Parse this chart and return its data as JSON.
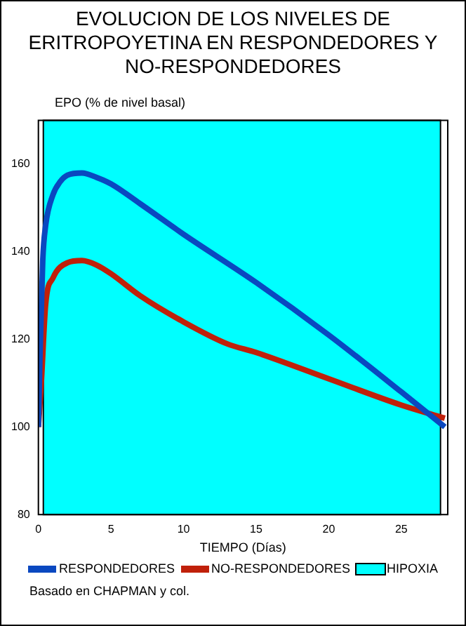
{
  "chart_data": {
    "type": "line",
    "title": "EVOLUCION DE LOS NIVELES DE ERITROPOYETINA EN RESPONDEDORES Y NO-RESPONDEDORES",
    "ylabel": "EPO (% de nivel basal)",
    "xlabel": "TIEMPO (Días)",
    "xlim": [
      0,
      28.2
    ],
    "xticks": [
      0,
      5,
      10,
      15,
      20,
      25
    ],
    "ylim": [
      80,
      170
    ],
    "yticks": [
      80,
      100,
      120,
      140,
      160
    ],
    "legend": "bottom",
    "marker": "none",
    "line_style": "solid",
    "grid": false,
    "series": [
      {
        "name": "RESPONDEDORES",
        "color": "#0a48c0",
        "x": [
          0,
          0.1,
          0.3,
          0.5,
          1,
          1.5,
          2,
          3,
          4,
          5,
          7,
          10,
          15,
          20,
          25,
          28
        ],
        "values": [
          100,
          115,
          138,
          146,
          153,
          156,
          157.5,
          158,
          157,
          155.5,
          151,
          144,
          133,
          121,
          108,
          100
        ]
      },
      {
        "name": "NO-RESPONDEDORES",
        "color": "#c0200a",
        "x": [
          0,
          0.2,
          0.5,
          1,
          2,
          3,
          4,
          5,
          7,
          10,
          13,
          15,
          20,
          25,
          28
        ],
        "values": [
          100,
          110,
          128,
          134,
          137.5,
          138,
          137,
          135,
          130,
          124,
          119,
          117,
          111,
          105,
          102
        ]
      }
    ],
    "bands": [
      {
        "axis": "x",
        "from": 0.34,
        "to": 27.7,
        "label": "HIPOXIA",
        "color": "#00ffff"
      }
    ],
    "annotations": [
      "Basado en CHAPMAN y col."
    ]
  }
}
